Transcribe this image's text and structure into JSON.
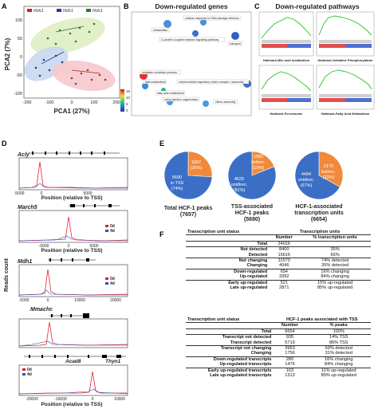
{
  "panels": {
    "A": {
      "letter": "A",
      "legend": [
        "Hcfc1",
        "Hcfc1",
        "Hcfc1"
      ],
      "xlabel": "PCA1 (27%)",
      "ylabel": "PCA2 (7%)",
      "xticks": [
        "-200",
        "-100",
        "0",
        "100",
        "200"
      ],
      "yticks": [
        "100",
        "50",
        "0",
        "-50",
        "-100"
      ]
    },
    "B": {
      "letter": "B",
      "title": "Down-regulated genes",
      "terms": [
        "metabolism",
        "cellular response to DNA damage stimulus",
        "G-protein coupled receptor signaling pathway",
        "transport",
        "oxidation-reduction process",
        "lipid metabolism",
        "mitochondrial respiratory chain complex I assembly",
        "fatty acid metabolism",
        "cell projection organization",
        "cilium assembly"
      ],
      "colorbar": [
        "15",
        "10",
        "5",
        "0"
      ]
    },
    "C": {
      "letter": "C",
      "title": "Down-regulated pathways",
      "plots": [
        "Hallmark-Bile acid metabolism",
        "Hallmark-Oxidative Phosphorylation",
        "Hallmark-Peroxisome",
        "Hallmark-Fatty Acid Metabolism"
      ]
    },
    "D": {
      "letter": "D",
      "ylabel": "Reads count",
      "xlabel": "Position (relative to TSS)",
      "genes": [
        "Acly",
        "March5",
        "Mdh1",
        "Mmachc",
        "Acad8",
        "Thyn1"
      ],
      "ticks1": [
        "-5000",
        "0",
        "5000"
      ],
      "ticks2": [
        "-5000",
        "0",
        "5000"
      ],
      "ticks3": [
        "-5000",
        "0",
        "10000",
        "20000"
      ],
      "ticks4": [
        "-20000",
        "-10000",
        "0",
        "10000"
      ],
      "legend": [
        "0d",
        "4d"
      ],
      "colors": {
        "d0": "#e02030",
        "d4": "#3050c0"
      }
    },
    "E": {
      "letter": "E",
      "pies": [
        {
          "title1": "Total HCF-1 peaks",
          "title2": "(7657)",
          "a": "5690",
          "a2": "in TSS",
          "a3": "(74%)",
          "b": "1967",
          "b2": "(26%)"
        },
        {
          "title1": "TSS-associated",
          "title2": "HCF-1 peaks",
          "title3": "(5690)",
          "a": "4625",
          "a2": "unidirec.",
          "a3": "(81%)",
          "b": "1065",
          "b2": "bidirec.",
          "b3": "(19%)"
        },
        {
          "title1": "HCF-1-associated",
          "title2": "transcription units",
          "title3": "(6654)",
          "a": "4484",
          "a2": "unidirec.",
          "a3": "(67%)",
          "b": "2170",
          "b2": "bidirec.",
          "b3": "(33%)"
        }
      ],
      "chart_data": {
        "type": "pie",
        "series": [
          {
            "values": [
              74,
              26
            ]
          },
          {
            "values": [
              81,
              19
            ]
          },
          {
            "values": [
              67,
              33
            ]
          }
        ],
        "colors": [
          "#3b6fc6",
          "#f08a3a"
        ]
      }
    },
    "F": {
      "letter": "F",
      "t1": {
        "h1": "Transcription unit status",
        "h2": "Transcription units",
        "s1": "Number",
        "s2": "% transcription units",
        "rows": [
          [
            "Total",
            "24016",
            ""
          ],
          [
            "Not detected",
            "8400",
            "35%"
          ],
          [
            "Detected",
            "15616",
            "65%"
          ],
          [
            "Not changing",
            "11570",
            "74% detected"
          ],
          [
            "Changing",
            "4046",
            "26% detected"
          ],
          [
            "Down-regulated",
            "654",
            "16% changing"
          ],
          [
            "Up-regulated",
            "3392",
            "84% changing"
          ],
          [
            "Early up-regulated",
            "521",
            "15% up-regulated"
          ],
          [
            "Late up-regulated",
            "2871",
            "85% up-regulated"
          ]
        ]
      },
      "t2": {
        "h1": "Transcription unit status",
        "h2": "HCF-1 peaks associated with TSS",
        "s1": "Number",
        "s2": "% peaks",
        "rows": [
          [
            "Total",
            "6654",
            "100%"
          ],
          [
            "Transcript not detected",
            "935",
            "14% TSS"
          ],
          [
            "Transcript detected",
            "5719",
            "86% TSS"
          ],
          [
            "Transcript not changing",
            "3963",
            "69% detected"
          ],
          [
            "Changing",
            "1756",
            "31% detected"
          ],
          [
            "Down-regulated transcripts",
            "280",
            "16% changing"
          ],
          [
            "Up-regulated transcripts",
            "1476",
            "84% changing"
          ],
          [
            "Early up-regulated transcripts",
            "163",
            "11% up-regulated"
          ],
          [
            "Late up-regulated transcripts",
            "1313",
            "89% up-regulated"
          ]
        ]
      }
    }
  }
}
